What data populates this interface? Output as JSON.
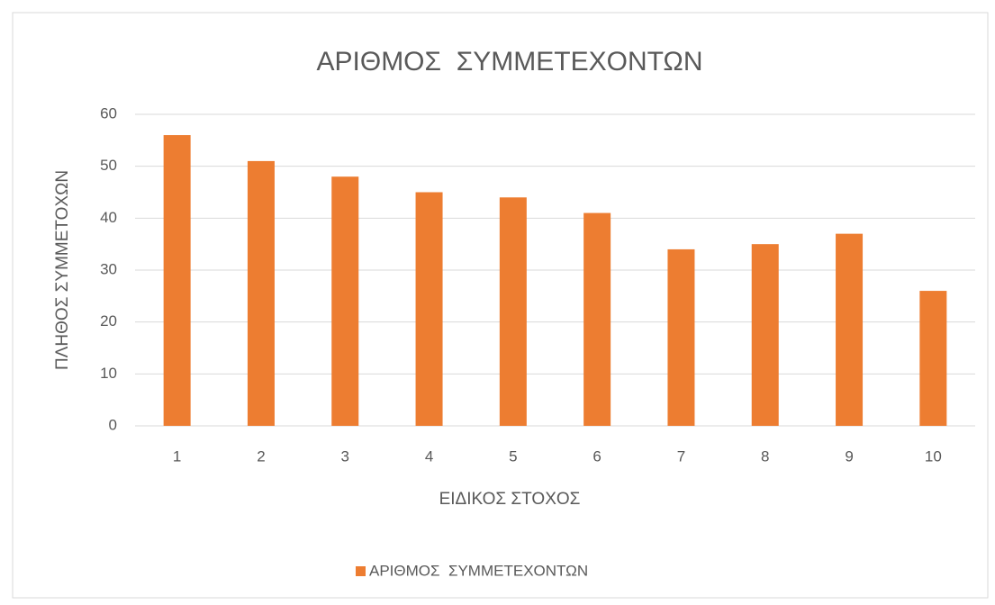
{
  "chart_data": {
    "type": "bar",
    "title": "ΑΡΙΘΜΟΣ  ΣΥΜΜΕΤΕΧΟΝΤΩΝ",
    "x_label": "ΕΙΔΙΚΟΣ ΣΤΟΧΟΣ",
    "y_label": "ΠΛΗΘΟΣ ΣΥΜΜΕΤΟΧΩΝ",
    "categories": [
      "1",
      "2",
      "3",
      "4",
      "5",
      "6",
      "7",
      "8",
      "9",
      "10"
    ],
    "series": [
      {
        "name": "ΑΡΙΘΜΟΣ  ΣΥΜΜΕΤΕΧΟΝΤΩΝ",
        "color": "#ed7d31",
        "values": [
          56,
          51,
          48,
          45,
          44,
          41,
          34,
          35,
          37,
          26
        ]
      }
    ],
    "ylim": [
      0,
      60
    ],
    "yticks": [
      0,
      10,
      20,
      30,
      40,
      50,
      60
    ],
    "grid": true,
    "legend": "bottom"
  }
}
